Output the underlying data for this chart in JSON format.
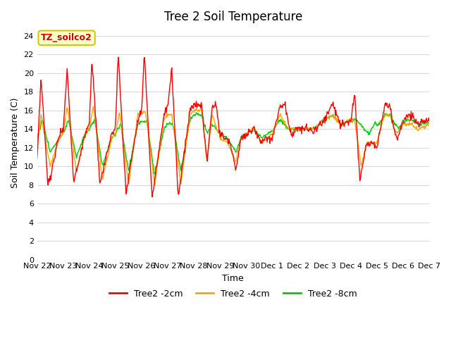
{
  "title": "Tree 2 Soil Temperature",
  "ylabel": "Soil Temperature (C)",
  "xlabel": "Time",
  "annotation_text": "TZ_soilco2",
  "legend_labels": [
    "Tree2 -2cm",
    "Tree2 -4cm",
    "Tree2 -8cm"
  ],
  "line_colors": [
    "#ff0000",
    "#ffa500",
    "#00cc00"
  ],
  "fig_bg_color": "#ffffff",
  "plot_bg_color": "#ffffff",
  "grid_color": "#d8d8d8",
  "ylim": [
    0,
    25
  ],
  "yticks": [
    0,
    2,
    4,
    6,
    8,
    10,
    12,
    14,
    16,
    18,
    20,
    22,
    24
  ],
  "xtick_labels": [
    "Nov 22",
    "Nov 23",
    "Nov 24",
    "Nov 25",
    "Nov 26",
    "Nov 27",
    "Nov 28",
    "Nov 29",
    "Nov 30",
    "Dec 1",
    "Dec 2",
    "Dec 3",
    "Dec 4",
    "Dec 5",
    "Dec 6",
    "Dec 7"
  ],
  "annotation_box_color": "#ffffcc",
  "annotation_box_edge": "#cccc00",
  "annotation_text_color": "#cc0000",
  "title_fontsize": 12,
  "label_fontsize": 9,
  "tick_fontsize": 8,
  "legend_fontsize": 9,
  "n_days": 15,
  "linewidth": 1.0
}
